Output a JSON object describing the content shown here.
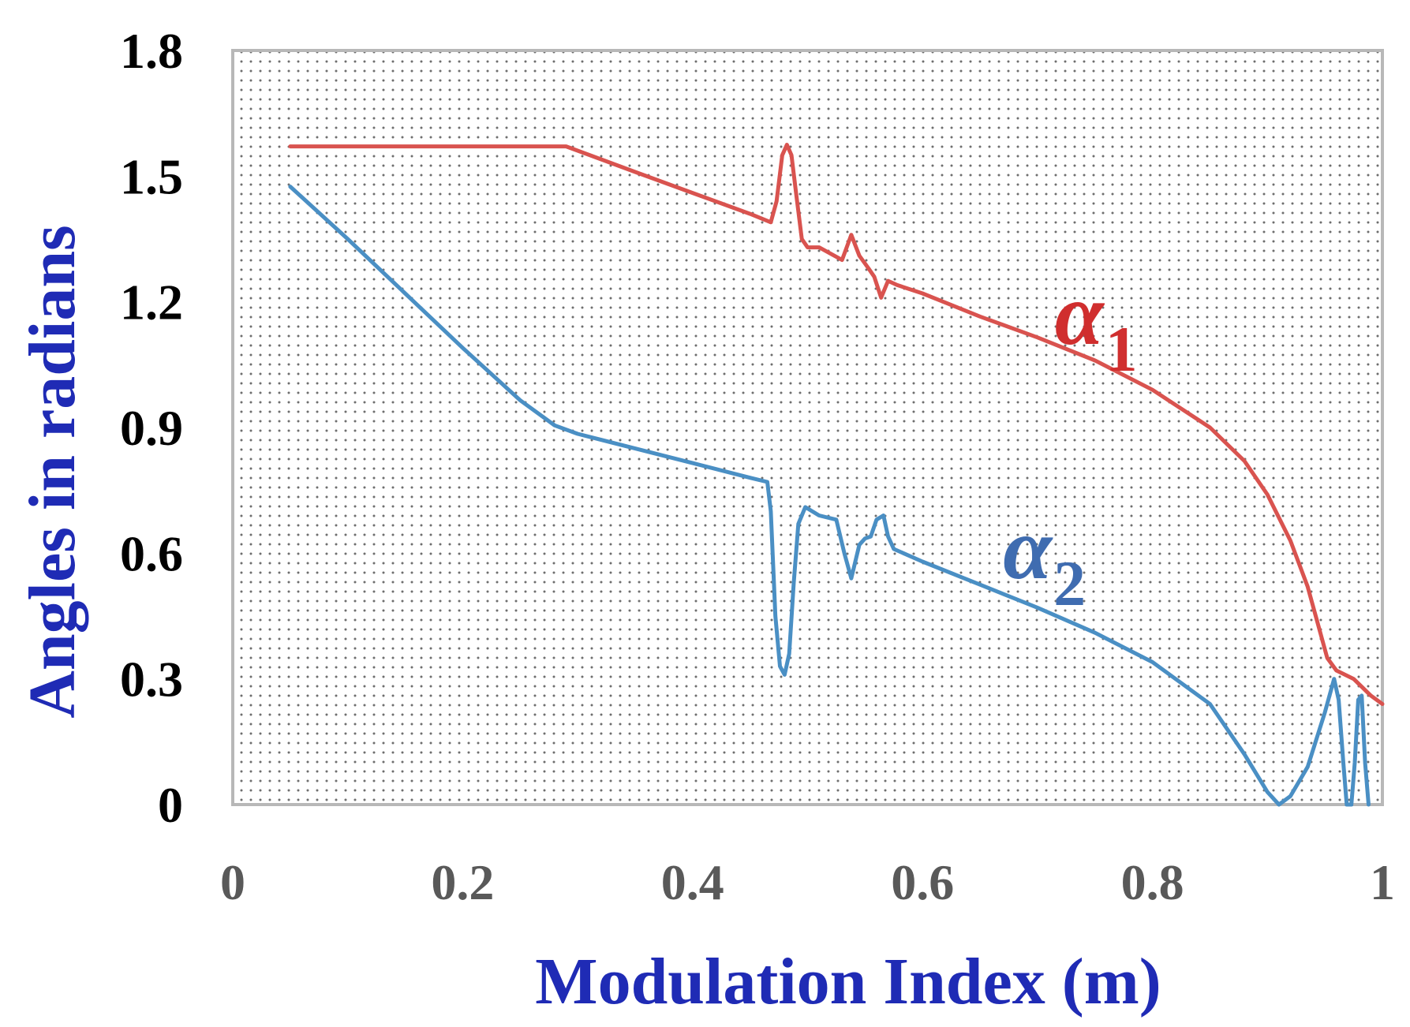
{
  "chart_data": {
    "type": "line",
    "title": "",
    "xlabel": "Modulation Index (m)",
    "ylabel": "Angles in radians",
    "xlim": [
      0,
      1
    ],
    "ylim": [
      0,
      1.8
    ],
    "x_ticks": [
      {
        "value": 0,
        "label": "0"
      },
      {
        "value": 0.2,
        "label": "0.2"
      },
      {
        "value": 0.4,
        "label": "0.4"
      },
      {
        "value": 0.6,
        "label": "0.6"
      },
      {
        "value": 0.8,
        "label": "0.8"
      },
      {
        "value": 1,
        "label": "1"
      }
    ],
    "y_ticks": [
      {
        "value": 0,
        "label": "0"
      },
      {
        "value": 0.3,
        "label": "0.3"
      },
      {
        "value": 0.6,
        "label": "0.6"
      },
      {
        "value": 0.9,
        "label": "0.9"
      },
      {
        "value": 1.2,
        "label": "1.2"
      },
      {
        "value": 1.5,
        "label": "1.5"
      },
      {
        "value": 1.8,
        "label": "1.8"
      }
    ],
    "grid": false,
    "plot_background": "dotted",
    "series": [
      {
        "name": "alpha1",
        "label_symbol": "α",
        "label_subscript": "1",
        "color": "#D9534F",
        "label_color": "#D02E2E",
        "label_at": [
          0.715,
          1.1
        ],
        "points": [
          [
            0.05,
            1.571
          ],
          [
            0.1,
            1.571
          ],
          [
            0.2,
            1.571
          ],
          [
            0.29,
            1.571
          ],
          [
            0.35,
            1.51
          ],
          [
            0.4,
            1.46
          ],
          [
            0.45,
            1.41
          ],
          [
            0.468,
            1.39
          ],
          [
            0.473,
            1.44
          ],
          [
            0.478,
            1.55
          ],
          [
            0.482,
            1.575
          ],
          [
            0.486,
            1.55
          ],
          [
            0.49,
            1.46
          ],
          [
            0.495,
            1.35
          ],
          [
            0.5,
            1.33
          ],
          [
            0.51,
            1.33
          ],
          [
            0.53,
            1.3
          ],
          [
            0.538,
            1.36
          ],
          [
            0.545,
            1.31
          ],
          [
            0.553,
            1.28
          ],
          [
            0.558,
            1.26
          ],
          [
            0.564,
            1.21
          ],
          [
            0.57,
            1.25
          ],
          [
            0.578,
            1.24
          ],
          [
            0.6,
            1.22
          ],
          [
            0.65,
            1.165
          ],
          [
            0.7,
            1.115
          ],
          [
            0.75,
            1.06
          ],
          [
            0.8,
            0.99
          ],
          [
            0.85,
            0.9
          ],
          [
            0.88,
            0.82
          ],
          [
            0.9,
            0.74
          ],
          [
            0.92,
            0.63
          ],
          [
            0.935,
            0.52
          ],
          [
            0.945,
            0.42
          ],
          [
            0.952,
            0.35
          ],
          [
            0.96,
            0.32
          ],
          [
            0.975,
            0.3
          ],
          [
            0.99,
            0.26
          ],
          [
            1.0,
            0.24
          ]
        ]
      },
      {
        "name": "alpha2",
        "label_symbol": "α",
        "label_subscript": "2",
        "color": "#4A8FC4",
        "label_color": "#3F6CB0",
        "label_at": [
          0.67,
          0.54
        ],
        "points": [
          [
            0.05,
            1.475
          ],
          [
            0.1,
            1.35
          ],
          [
            0.15,
            1.22
          ],
          [
            0.2,
            1.09
          ],
          [
            0.25,
            0.965
          ],
          [
            0.28,
            0.905
          ],
          [
            0.3,
            0.885
          ],
          [
            0.35,
            0.85
          ],
          [
            0.4,
            0.815
          ],
          [
            0.45,
            0.78
          ],
          [
            0.465,
            0.77
          ],
          [
            0.468,
            0.7
          ],
          [
            0.472,
            0.45
          ],
          [
            0.476,
            0.33
          ],
          [
            0.48,
            0.31
          ],
          [
            0.484,
            0.36
          ],
          [
            0.488,
            0.53
          ],
          [
            0.492,
            0.67
          ],
          [
            0.498,
            0.71
          ],
          [
            0.51,
            0.69
          ],
          [
            0.525,
            0.68
          ],
          [
            0.532,
            0.6
          ],
          [
            0.538,
            0.54
          ],
          [
            0.545,
            0.62
          ],
          [
            0.55,
            0.635
          ],
          [
            0.555,
            0.64
          ],
          [
            0.56,
            0.68
          ],
          [
            0.566,
            0.69
          ],
          [
            0.57,
            0.64
          ],
          [
            0.575,
            0.61
          ],
          [
            0.6,
            0.58
          ],
          [
            0.65,
            0.525
          ],
          [
            0.7,
            0.47
          ],
          [
            0.75,
            0.41
          ],
          [
            0.8,
            0.34
          ],
          [
            0.85,
            0.24
          ],
          [
            0.88,
            0.12
          ],
          [
            0.9,
            0.03
          ],
          [
            0.91,
            0.0
          ],
          [
            0.92,
            0.02
          ],
          [
            0.935,
            0.09
          ],
          [
            0.95,
            0.22
          ],
          [
            0.958,
            0.3
          ],
          [
            0.962,
            0.25
          ],
          [
            0.966,
            0.1
          ],
          [
            0.969,
            0.0
          ],
          [
            0.973,
            0.0
          ],
          [
            0.976,
            0.1
          ],
          [
            0.979,
            0.25
          ],
          [
            0.982,
            0.26
          ],
          [
            0.985,
            0.1
          ],
          [
            0.988,
            0.0
          ]
        ]
      }
    ]
  }
}
